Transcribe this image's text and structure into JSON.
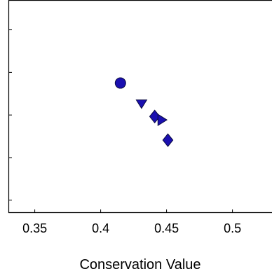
{
  "chart_data": {
    "type": "scatter",
    "title": "",
    "xlabel": "Conservation Value",
    "ylabel": "",
    "xlim": [
      0.33,
      0.53
    ],
    "x_ticks": [
      {
        "value": 0.35,
        "label": "0.35"
      },
      {
        "value": 0.4,
        "label": "0.4"
      },
      {
        "value": 0.45,
        "label": "0.45"
      },
      {
        "value": 0.5,
        "label": "0.5"
      }
    ],
    "ylim": [
      0,
      1
    ],
    "y_ticks": [
      0.06,
      0.26,
      0.46,
      0.66,
      0.86
    ],
    "grid": false,
    "marker_color": "#1a0fb0",
    "points": [
      {
        "x": 0.415,
        "y": 0.61,
        "marker": "circle"
      },
      {
        "x": 0.431,
        "y": 0.516,
        "marker": "triangle-down"
      },
      {
        "x": 0.441,
        "y": 0.453,
        "marker": "diamond"
      },
      {
        "x": 0.446,
        "y": 0.437,
        "marker": "triangle-right"
      },
      {
        "x": 0.451,
        "y": 0.342,
        "marker": "diamond"
      }
    ]
  }
}
